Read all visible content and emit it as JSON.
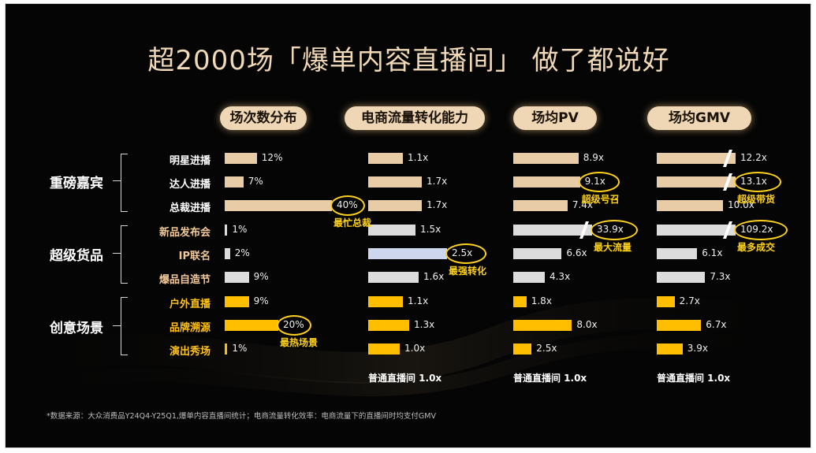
{
  "title": "超2000场「爆单内容直播间」 做了都说好",
  "footnote": "*数据来源：大众消费品Y24Q4-Y25Q1,爆单内容直播间统计；电商流量转化效率：电商流量下的直播间时均支付GMV",
  "colors": {
    "group1": "#e8cba7",
    "group2": "#dcdcdc",
    "group3": "#ffbf00",
    "highlight": "#cdd6ec",
    "annotation": "#ffd21a"
  },
  "chart_data": {
    "type": "bar",
    "groups": [
      {
        "name": "重磅嘉宾",
        "rows": [
          "明星进播",
          "达人进播",
          "总裁进播"
        ]
      },
      {
        "name": "超级货品",
        "rows": [
          "新品发布会",
          "IP联名",
          "爆品自造节"
        ]
      },
      {
        "name": "创意场景",
        "rows": [
          "户外直播",
          "品牌溯源",
          "演出秀场"
        ]
      }
    ],
    "categories": [
      "明星进播",
      "达人进播",
      "总裁进播",
      "新品发布会",
      "IP联名",
      "爆品自造节",
      "户外直播",
      "品牌溯源",
      "演出秀场"
    ],
    "series": [
      {
        "name": "场次数分布",
        "values": [
          12,
          7,
          40,
          1,
          2,
          9,
          9,
          20,
          1
        ],
        "labels": [
          "12%",
          "7%",
          "40%",
          "1%",
          "2%",
          "9%",
          "9%",
          "20%",
          "1%"
        ]
      },
      {
        "name": "电商流量转化能力",
        "values": [
          1.1,
          1.7,
          1.7,
          1.5,
          2.5,
          1.6,
          1.1,
          1.3,
          1.0
        ],
        "labels": [
          "1.1x",
          "1.7x",
          "1.7x",
          "1.5x",
          "2.5x",
          "1.6x",
          "1.1x",
          "1.3x",
          "1.0x"
        ]
      },
      {
        "name": "场均PV",
        "values": [
          8.9,
          9.1,
          7.4,
          33.9,
          6.6,
          4.3,
          1.8,
          8.0,
          2.5
        ],
        "labels": [
          "8.9x",
          "9.1x",
          "7.4x",
          "33.9x",
          "6.6x",
          "4.3x",
          "1.8x",
          "8.0x",
          "2.5x"
        ]
      },
      {
        "name": "场均GMV",
        "values": [
          12.2,
          13.1,
          10.0,
          109.2,
          6.1,
          7.3,
          2.7,
          6.7,
          3.9
        ],
        "labels": [
          "12.2x",
          "13.1x",
          "10.0x",
          "109.2x",
          "6.1x",
          "7.3x",
          "2.7x",
          "6.7x",
          "3.9x"
        ]
      }
    ],
    "baseline_labels": [
      "普通直播间 1.0x",
      "普通直播间 1.0x",
      "普通直播间 1.0x"
    ],
    "annotations": [
      {
        "series": 0,
        "row": 2,
        "text": "最忙总裁"
      },
      {
        "series": 0,
        "row": 7,
        "text": "最热场景"
      },
      {
        "series": 1,
        "row": 4,
        "text": "最强转化"
      },
      {
        "series": 2,
        "row": 1,
        "text": "超级号召"
      },
      {
        "series": 2,
        "row": 3,
        "text": "最大流量"
      },
      {
        "series": 3,
        "row": 1,
        "text": "超级带货"
      },
      {
        "series": 3,
        "row": 3,
        "text": "最多成交"
      }
    ]
  }
}
